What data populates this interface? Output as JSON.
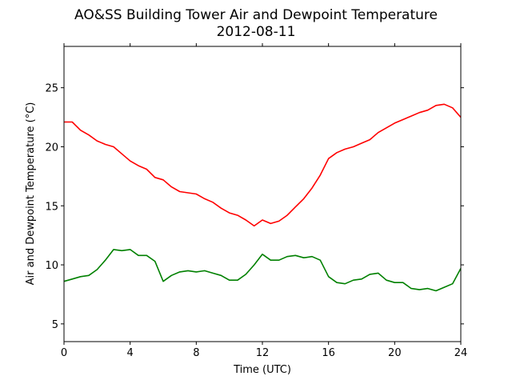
{
  "chart_data": {
    "type": "line",
    "title": "AO&SS Building Tower Air and Dewpoint Temperature",
    "subtitle": "2012-08-11",
    "xlabel": "Time (UTC)",
    "ylabel": "Air and Dewpoint Temperature (°C)",
    "xlim": [
      0,
      24
    ],
    "ylim": [
      3.5,
      28.5
    ],
    "xticks": [
      0,
      4,
      8,
      12,
      16,
      20,
      24
    ],
    "yticks": [
      5,
      10,
      15,
      20,
      25
    ],
    "grid": false,
    "legend": "none",
    "series": [
      {
        "color": "#ff0000",
        "x": [
          0,
          0.5,
          1,
          1.5,
          2,
          2.5,
          3,
          3.5,
          4,
          4.5,
          5,
          5.5,
          6,
          6.5,
          7,
          7.5,
          8,
          8.5,
          9,
          9.5,
          10,
          10.5,
          11,
          11.5,
          12,
          12.5,
          13,
          13.5,
          14,
          14.5,
          15,
          15.5,
          16,
          16.5,
          17,
          17.5,
          18,
          18.5,
          19,
          19.5,
          20,
          20.5,
          21,
          21.5,
          22,
          22.5,
          23,
          23.5,
          24
        ],
        "values": [
          22.1,
          22.1,
          21.4,
          21.0,
          20.5,
          20.2,
          20.0,
          19.4,
          18.8,
          18.4,
          18.1,
          17.4,
          17.2,
          16.6,
          16.2,
          16.1,
          16.0,
          15.6,
          15.3,
          14.8,
          14.4,
          14.2,
          13.8,
          13.3,
          13.8,
          13.5,
          13.7,
          14.2,
          14.9,
          15.6,
          16.5,
          17.6,
          19.0,
          19.5,
          19.8,
          20.0,
          20.3,
          20.6,
          21.2,
          21.6,
          22.0,
          22.3,
          22.6,
          22.9,
          23.1,
          23.5,
          23.6,
          23.3,
          22.5
        ]
      },
      {
        "color": "#008000",
        "x": [
          0,
          0.5,
          1,
          1.5,
          2,
          2.5,
          3,
          3.5,
          4,
          4.5,
          5,
          5.5,
          6,
          6.5,
          7,
          7.5,
          8,
          8.5,
          9,
          9.5,
          10,
          10.5,
          11,
          11.5,
          12,
          12.5,
          13,
          13.5,
          14,
          14.5,
          15,
          15.5,
          16,
          16.5,
          17,
          17.5,
          18,
          18.5,
          19,
          19.5,
          20,
          20.5,
          21,
          21.5,
          22,
          22.5,
          23,
          23.5,
          24
        ],
        "values": [
          8.6,
          8.8,
          9.0,
          9.1,
          9.6,
          10.4,
          11.3,
          11.2,
          11.3,
          10.8,
          10.8,
          10.3,
          8.6,
          9.1,
          9.4,
          9.5,
          9.4,
          9.5,
          9.3,
          9.1,
          8.7,
          8.7,
          9.2,
          10.0,
          10.9,
          10.4,
          10.4,
          10.7,
          10.8,
          10.6,
          10.7,
          10.4,
          9.0,
          8.5,
          8.4,
          8.7,
          8.8,
          9.2,
          9.3,
          8.7,
          8.5,
          8.5,
          8.0,
          7.9,
          8.0,
          7.8,
          8.1,
          8.4,
          9.7
        ]
      }
    ]
  }
}
